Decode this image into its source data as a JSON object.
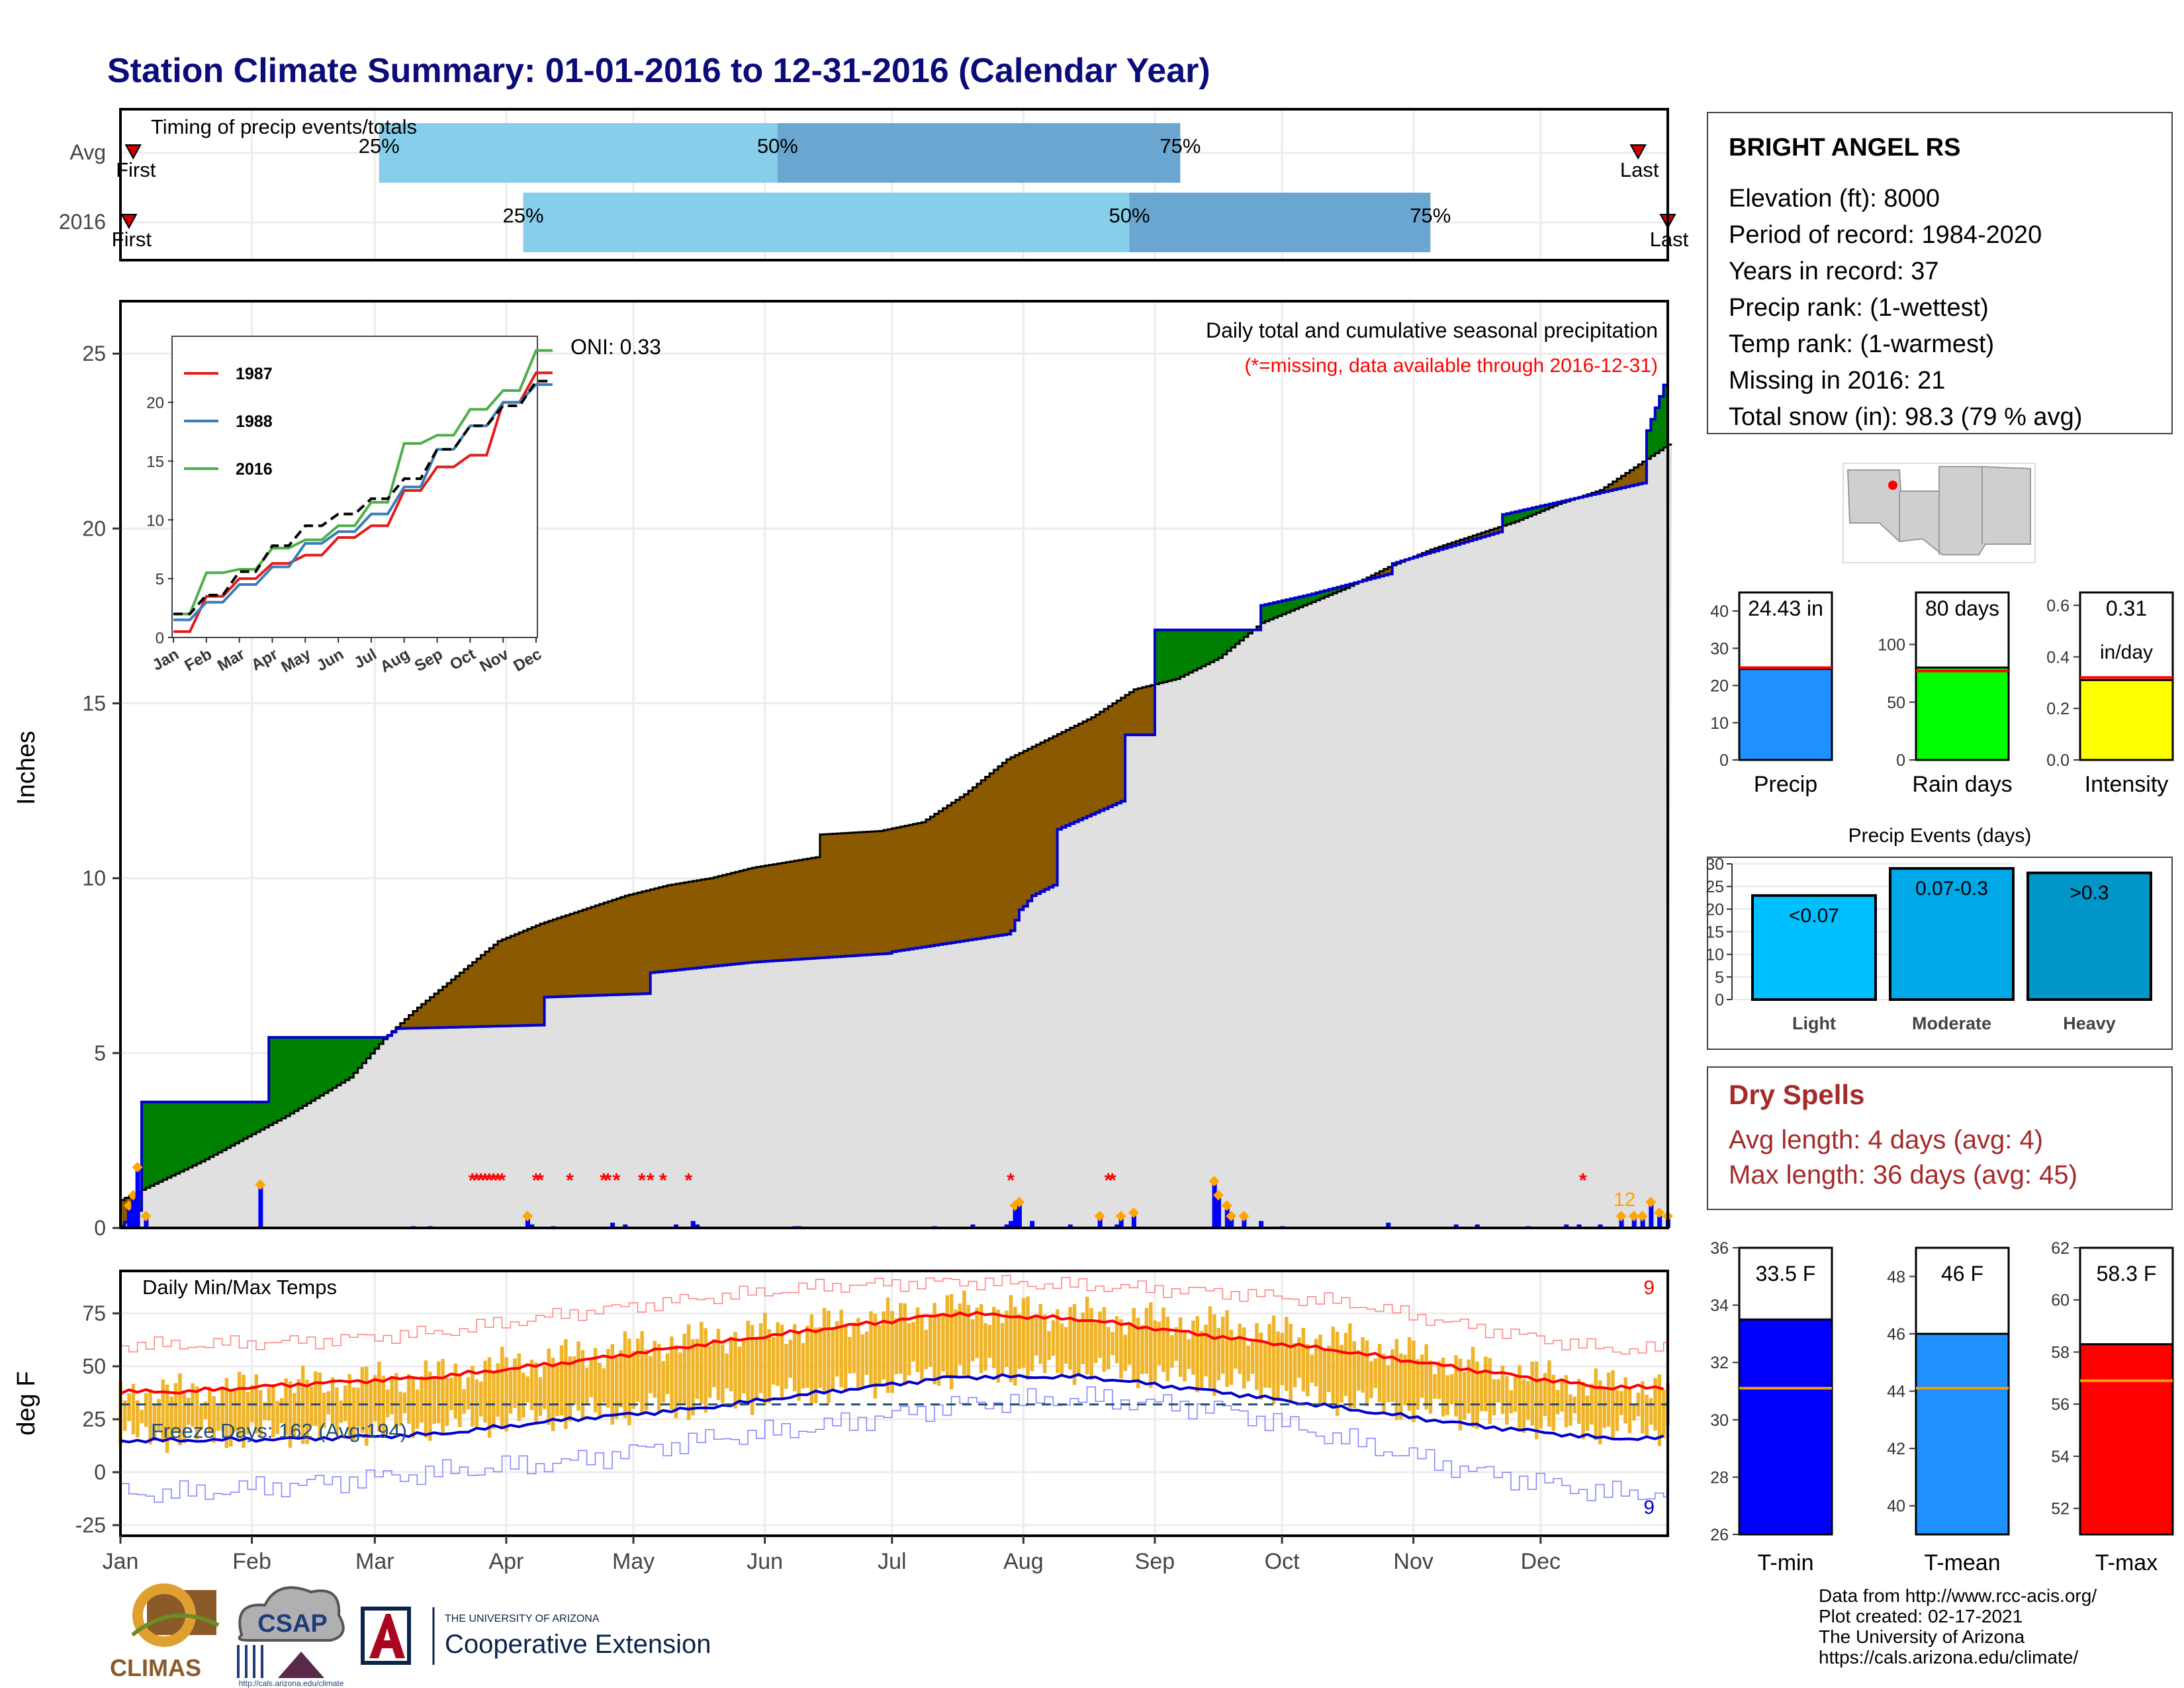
{
  "page": {
    "title": "Station Climate Summary: 01-01-2016 to 12-31-2016 (Calendar Year)",
    "title_color": "#0b0b7a"
  },
  "timing": {
    "title": "Timing of precip events/totals",
    "rows": [
      {
        "label": "Avg",
        "first_label": "First",
        "last_label": "Last",
        "q25_label": "25%",
        "q50_label": "50%",
        "q75_label": "75%",
        "q25_doy": 62,
        "q50_doy": 156,
        "q75_doy": 251,
        "first_doy": 4,
        "last_doy": 359
      },
      {
        "label": "2016",
        "first_label": "First",
        "last_label": "Last",
        "q25_label": "25%",
        "q50_label": "50%",
        "q75_label": "75%",
        "q25_doy": 96,
        "q50_doy": 239,
        "q75_doy": 310,
        "first_doy": 3,
        "last_doy": 366
      }
    ],
    "colors": {
      "lower": "#87ceeb",
      "upper": "#6aa6cf",
      "marker": "#cc0000"
    }
  },
  "precip": {
    "ylabel": "Inches",
    "title": "Daily total and cumulative seasonal precipitation",
    "missing_note": "(*=missing, data available through 2016-12-31)",
    "oni": "ONI: 0.33",
    "count_note": "12",
    "yticks": [
      "0",
      "5",
      "10",
      "15",
      "20",
      "25"
    ],
    "colors": {
      "wetter": "#008000",
      "drier": "#8b5a00",
      "avg_fill": "#e0e0e0",
      "line": "#0000cc",
      "missing": "#ff0000",
      "daily": "#0000ff",
      "marker": "#ffa500"
    }
  },
  "inset": {
    "xticks": [
      "Jan",
      "Feb",
      "Mar",
      "Apr",
      "May",
      "Jun",
      "Jul",
      "Aug",
      "Sep",
      "Oct",
      "Nov",
      "Dec"
    ],
    "yticks": [
      "0",
      "5",
      "10",
      "15",
      "20"
    ],
    "legend": [
      {
        "label": "1987",
        "color": "#e41a1c"
      },
      {
        "label": "1988",
        "color": "#377eb8"
      },
      {
        "label": "2016",
        "color": "#4daf4a"
      }
    ]
  },
  "temps": {
    "ylabel": "deg F",
    "title": "Daily Min/Max Temps",
    "freeze_note": "Freeze Days: 162 (Avg:194)",
    "max_record_count": "9",
    "min_record_count": "9",
    "yticks": [
      "-25",
      "0",
      "25",
      "50",
      "75"
    ],
    "colors": {
      "bar": "#f0b429",
      "max_line": "#ff0000",
      "min_line": "#0000cc",
      "freeze": "#1f4e79"
    }
  },
  "months": [
    "Jan",
    "Feb",
    "Mar",
    "Apr",
    "May",
    "Jun",
    "Jul",
    "Aug",
    "Sep",
    "Oct",
    "Nov",
    "Dec"
  ],
  "station": {
    "name": "BRIGHT ANGEL RS",
    "lines": [
      "Elevation (ft): 8000",
      "Period of record: 1984-2020",
      "Years in record: 37",
      "Precip rank:  (1-wettest)",
      "Temp rank:  (1-warmest)",
      "Missing in 2016: 21",
      "Total snow (in): 98.3 (79 % avg)"
    ]
  },
  "summary_bars": [
    {
      "label": "Precip",
      "value_label": "24.43 in",
      "value_label2": "",
      "color": "#1e90ff",
      "ticks": [
        "0",
        "10",
        "20",
        "30",
        "40"
      ]
    },
    {
      "label": "Rain days",
      "value_label": "80 days",
      "value_label2": "",
      "color": "#00ff00",
      "ticks": [
        "0",
        "50",
        "100"
      ]
    },
    {
      "label": "Intensity",
      "value_label": "0.31",
      "value_label2": "in/day",
      "color": "#ffff00",
      "ticks": [
        "0.0",
        "0.2",
        "0.4",
        "0.6"
      ]
    }
  ],
  "events": {
    "title": "Precip Events (days)",
    "ticks": [
      "0",
      "5",
      "10",
      "15",
      "20",
      "25",
      "30"
    ],
    "bars": [
      {
        "label": "Light",
        "value_label": "<0.07",
        "value": 23,
        "color": "#00bfff"
      },
      {
        "label": "Moderate",
        "value_label": "0.07-0.3",
        "value": 29,
        "color": "#00a8e8"
      },
      {
        "label": "Heavy",
        "value_label": ">0.3",
        "value": 28,
        "color": "#0096c7"
      }
    ]
  },
  "dry_spells": {
    "title": "Dry Spells",
    "avg": "Avg length: 4 days (avg: 4)",
    "max": "Max length: 36 days (avg: 45)",
    "color": "#a52a2a"
  },
  "temp_bars": [
    {
      "label": "T-min",
      "value_label": "33.5 F",
      "value": 33.5,
      "avg": 31.1,
      "min": 26,
      "max": 36,
      "color": "#0000ff",
      "ticks": [
        "26",
        "28",
        "30",
        "32",
        "34",
        "36"
      ]
    },
    {
      "label": "T-mean",
      "value_label": "46 F",
      "value": 46,
      "avg": 44.1,
      "min": 39,
      "max": 49,
      "color": "#1e90ff",
      "ticks": [
        "40",
        "42",
        "44",
        "46",
        "48"
      ]
    },
    {
      "label": "T-max",
      "value_label": "58.3 F",
      "value": 58.3,
      "avg": 56.9,
      "min": 51,
      "max": 62,
      "color": "#ff0000",
      "ticks": [
        "52",
        "54",
        "56",
        "58",
        "60",
        "62"
      ]
    }
  ],
  "credits": [
    "Data from http://www.rcc-acis.org/",
    "Plot created: 02-17-2021",
    "The University of Arizona",
    "https://cals.arizona.edu/climate/"
  ],
  "logos": {
    "climas": "CLIMAS",
    "csap": "CSAP",
    "csap_url": "http://cals.arizona.edu/climate",
    "ua_small": "THE UNIVERSITY OF ARIZONA",
    "ua_big": "Cooperative Extension"
  },
  "chart_data": [
    {
      "type": "area",
      "title": "Daily total and cumulative seasonal precipitation",
      "ylabel": "Inches",
      "ylim": [
        0,
        26.5
      ],
      "x_units": "day of year 2016",
      "series": [
        {
          "name": "2016",
          "x": [
            1,
            5,
            6,
            35,
            36,
            63,
            64,
            66,
            100,
            101,
            125,
            126,
            150,
            182,
            183,
            210,
            211,
            213,
            214,
            216,
            221,
            222,
            237,
            238,
            244,
            245,
            269,
            270,
            281,
            300,
            301,
            326,
            327,
            360,
            361,
            366
          ],
          "y": [
            0.05,
            0.5,
            3.6,
            3.6,
            5.45,
            5.45,
            5.5,
            5.7,
            5.8,
            6.6,
            6.7,
            7.3,
            7.6,
            7.85,
            7.9,
            8.4,
            8.5,
            9.1,
            9.2,
            9.5,
            9.8,
            11.4,
            12.2,
            14.1,
            14.1,
            17.1,
            17.1,
            17.8,
            18.1,
            18.7,
            19.0,
            19.9,
            20.4,
            21.3,
            22.8,
            24.43
          ]
        },
        {
          "name": "Average",
          "x": [
            1,
            20,
            40,
            55,
            63,
            70,
            80,
            90,
            100,
            110,
            120,
            130,
            140,
            150,
            160,
            165,
            166,
            180,
            190,
            200,
            210,
            220,
            230,
            240,
            250,
            260,
            270,
            280,
            290,
            300,
            310,
            320,
            330,
            340,
            350,
            366
          ],
          "y": [
            0.8,
            1.9,
            3.2,
            4.3,
            5.4,
            6.2,
            7.2,
            8.2,
            8.7,
            9.1,
            9.5,
            9.8,
            10.0,
            10.3,
            10.5,
            10.6,
            11.25,
            11.35,
            11.6,
            12.4,
            13.4,
            14.0,
            14.6,
            15.4,
            15.7,
            16.3,
            17.3,
            17.8,
            18.3,
            18.9,
            19.4,
            19.8,
            20.2,
            20.7,
            21.1,
            22.4
          ]
        }
      ],
      "daily_bars": {
        "x": [
          3,
          4,
          5,
          7,
          34,
          70,
          74,
          97,
          98,
          103,
          117,
          120,
          132,
          136,
          137,
          160,
          161,
          193,
          202,
          210,
          211,
          212,
          213,
          216,
          225,
          232,
          236,
          237,
          240,
          259,
          260,
          262,
          263,
          266,
          270,
          275,
          300,
          316,
          321,
          333,
          342,
          345,
          350,
          355,
          358,
          360,
          362,
          364,
          366
        ],
        "y": [
          0.6,
          0.9,
          1.7,
          0.3,
          1.2,
          0.05,
          0.05,
          0.3,
          0.1,
          0.05,
          0.15,
          0.1,
          0.1,
          0.2,
          0.1,
          0.05,
          0.05,
          0.05,
          0.1,
          0.1,
          0.2,
          0.6,
          0.7,
          0.2,
          0.1,
          0.3,
          0.1,
          0.3,
          0.4,
          1.3,
          0.9,
          0.6,
          0.3,
          0.3,
          0.2,
          0.05,
          0.15,
          0.1,
          0.1,
          0.05,
          0.1,
          0.1,
          0.1,
          0.3,
          0.3,
          0.3,
          0.7,
          0.4,
          0.3
        ]
      },
      "missing_days": [
        84,
        85,
        86,
        87,
        88,
        89,
        90,
        91,
        99,
        100,
        107,
        115,
        116,
        118,
        124,
        126,
        129,
        135,
        211,
        234,
        235,
        346
      ]
    },
    {
      "type": "line",
      "title": "",
      "x": [
        "Jan",
        "Feb",
        "Mar",
        "Apr",
        "May",
        "Jun",
        "Jul",
        "Aug",
        "Sep",
        "Oct",
        "Nov",
        "Dec"
      ],
      "ylim": [
        0,
        25
      ],
      "series": [
        {
          "name": "1987",
          "values": [
            0.5,
            3.5,
            5.0,
            6.3,
            7.0,
            8.5,
            9.5,
            12.5,
            14.5,
            15.5,
            20.0,
            22.5
          ]
        },
        {
          "name": "1988",
          "values": [
            1.5,
            3.0,
            4.5,
            6.0,
            8.0,
            9.0,
            10.5,
            12.8,
            16.0,
            18.0,
            20.0,
            21.5
          ]
        },
        {
          "name": "2016",
          "values": [
            2.0,
            5.5,
            5.8,
            7.6,
            8.3,
            9.5,
            11.5,
            16.5,
            17.2,
            19.4,
            21.0,
            24.4
          ]
        },
        {
          "name": "",
          "values": [
            2.0,
            3.6,
            5.6,
            7.8,
            9.5,
            10.5,
            11.8,
            13.5,
            16.0,
            18.0,
            19.7,
            21.8
          ]
        }
      ]
    },
    {
      "type": "bar",
      "title": "Daily Min/Max Temps",
      "ylabel": "deg F",
      "ylim": [
        -30,
        95
      ],
      "x": [
        "Jan",
        "Feb",
        "Mar",
        "Apr",
        "May",
        "Jun",
        "Jul",
        "Aug",
        "Sep",
        "Oct",
        "Nov",
        "Dec"
      ],
      "series": [
        {
          "name": "",
          "values": [
            38,
            42,
            46,
            55,
            63,
            70,
            78,
            74,
            70,
            62,
            50,
            41
          ]
        },
        {
          "name": "",
          "values": [
            17,
            19,
            22,
            27,
            32,
            39,
            47,
            49,
            43,
            34,
            26,
            20
          ]
        },
        {
          "name": "",
          "values": [
            60,
            62,
            66,
            75,
            82,
            88,
            90,
            88,
            85,
            80,
            68,
            58
          ]
        },
        {
          "name": "",
          "values": [
            -10,
            -5,
            0,
            5,
            15,
            22,
            32,
            35,
            30,
            15,
            0,
            -10
          ]
        },
        {
          "name": "",
          "values": [
            38,
            42,
            45,
            52,
            60,
            68,
            75,
            72,
            64,
            57,
            48,
            40
          ]
        },
        {
          "name": "",
          "values": [
            15,
            16,
            18,
            25,
            30,
            38,
            45,
            45,
            38,
            30,
            22,
            16
          ]
        }
      ],
      "freeze_threshold": 32
    },
    {
      "type": "bar",
      "title": "",
      "categories": [
        "Precip",
        "Rain days",
        "Intensity"
      ],
      "values": [
        24.43,
        80,
        0.31
      ],
      "averages": [
        24.8,
        77,
        0.32
      ]
    },
    {
      "type": "bar",
      "title": "Precip Events (days)",
      "categories": [
        "Light",
        "Moderate",
        "Heavy"
      ],
      "values": [
        23,
        29,
        28
      ],
      "ylim": [
        0,
        30
      ]
    },
    {
      "type": "bar",
      "title": "",
      "categories": [
        "T-min",
        "T-mean",
        "T-max"
      ],
      "values": [
        33.5,
        46,
        58.3
      ],
      "averages": [
        31.1,
        44.1,
        56.9
      ]
    }
  ]
}
